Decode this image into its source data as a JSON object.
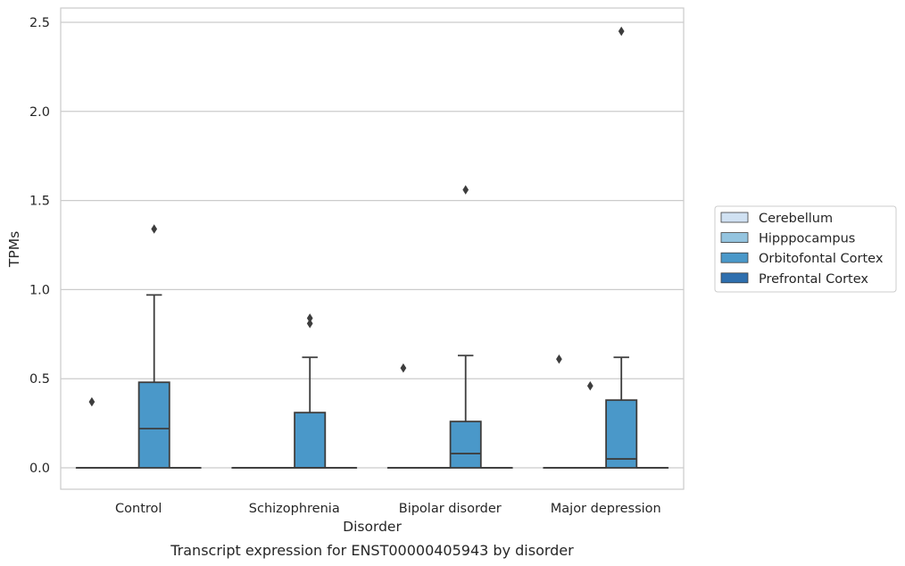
{
  "chart_data": {
    "type": "box",
    "caption": "Transcript expression for ENST00000405943 by disorder",
    "xlabel": "Disorder",
    "ylabel": "TPMs",
    "ylim": [
      -0.12,
      2.58
    ],
    "yticks": [
      0.0,
      0.5,
      1.0,
      1.5,
      2.0,
      2.5
    ],
    "ytick_labels": [
      "0.0",
      "0.5",
      "1.0",
      "1.5",
      "2.0",
      "2.5"
    ],
    "grid": "horizontal",
    "legend_position": "right",
    "categories": [
      "Control",
      "Schizophrenia",
      "Bipolar disorder",
      "Major depression"
    ],
    "series": [
      {
        "name": "Cerebellum",
        "color": "#d0e1f2",
        "boxes": [
          {
            "q1": 0,
            "median": 0,
            "q3": 0,
            "whisker_low": 0,
            "whisker_high": 0,
            "outliers": [
              0.37
            ]
          },
          {
            "q1": 0,
            "median": 0,
            "q3": 0,
            "whisker_low": 0,
            "whisker_high": 0,
            "outliers": []
          },
          {
            "q1": 0,
            "median": 0,
            "q3": 0,
            "whisker_low": 0,
            "whisker_high": 0,
            "outliers": [
              0.56
            ]
          },
          {
            "q1": 0,
            "median": 0,
            "q3": 0,
            "whisker_low": 0,
            "whisker_high": 0,
            "outliers": [
              0.61
            ]
          }
        ]
      },
      {
        "name": "Hipppocampus",
        "color": "#94c4df",
        "boxes": [
          {
            "q1": 0,
            "median": 0,
            "q3": 0,
            "whisker_low": 0,
            "whisker_high": 0,
            "outliers": []
          },
          {
            "q1": 0,
            "median": 0,
            "q3": 0,
            "whisker_low": 0,
            "whisker_high": 0,
            "outliers": []
          },
          {
            "q1": 0,
            "median": 0,
            "q3": 0,
            "whisker_low": 0,
            "whisker_high": 0,
            "outliers": []
          },
          {
            "q1": 0,
            "median": 0,
            "q3": 0,
            "whisker_low": 0,
            "whisker_high": 0,
            "outliers": [
              0.46
            ]
          }
        ]
      },
      {
        "name": "Orbitofontal Cortex",
        "color": "#4a98c9",
        "boxes": [
          {
            "q1": 0,
            "median": 0.22,
            "q3": 0.48,
            "whisker_low": 0,
            "whisker_high": 0.97,
            "outliers": [
              1.34
            ]
          },
          {
            "q1": 0,
            "median": 0,
            "q3": 0.31,
            "whisker_low": 0,
            "whisker_high": 0.62,
            "outliers": [
              0.81,
              0.84
            ]
          },
          {
            "q1": 0,
            "median": 0.08,
            "q3": 0.26,
            "whisker_low": 0,
            "whisker_high": 0.63,
            "outliers": [
              1.56
            ]
          },
          {
            "q1": 0,
            "median": 0.05,
            "q3": 0.38,
            "whisker_low": 0,
            "whisker_high": 0.62,
            "outliers": [
              2.45
            ]
          }
        ]
      },
      {
        "name": "Prefrontal Cortex",
        "color": "#2e6fae",
        "boxes": [
          {
            "q1": 0,
            "median": 0,
            "q3": 0,
            "whisker_low": 0,
            "whisker_high": 0,
            "outliers": []
          },
          {
            "q1": 0,
            "median": 0,
            "q3": 0,
            "whisker_low": 0,
            "whisker_high": 0,
            "outliers": []
          },
          {
            "q1": 0,
            "median": 0,
            "q3": 0,
            "whisker_low": 0,
            "whisker_high": 0,
            "outliers": []
          },
          {
            "q1": 0,
            "median": 0,
            "q3": 0,
            "whisker_low": 0,
            "whisker_high": 0,
            "outliers": []
          }
        ]
      }
    ]
  },
  "style": {
    "box_edge_color": "#3d3d3d",
    "grid_color": "#cccccc",
    "frame_color": "#cccccc",
    "text_color": "#262626"
  }
}
